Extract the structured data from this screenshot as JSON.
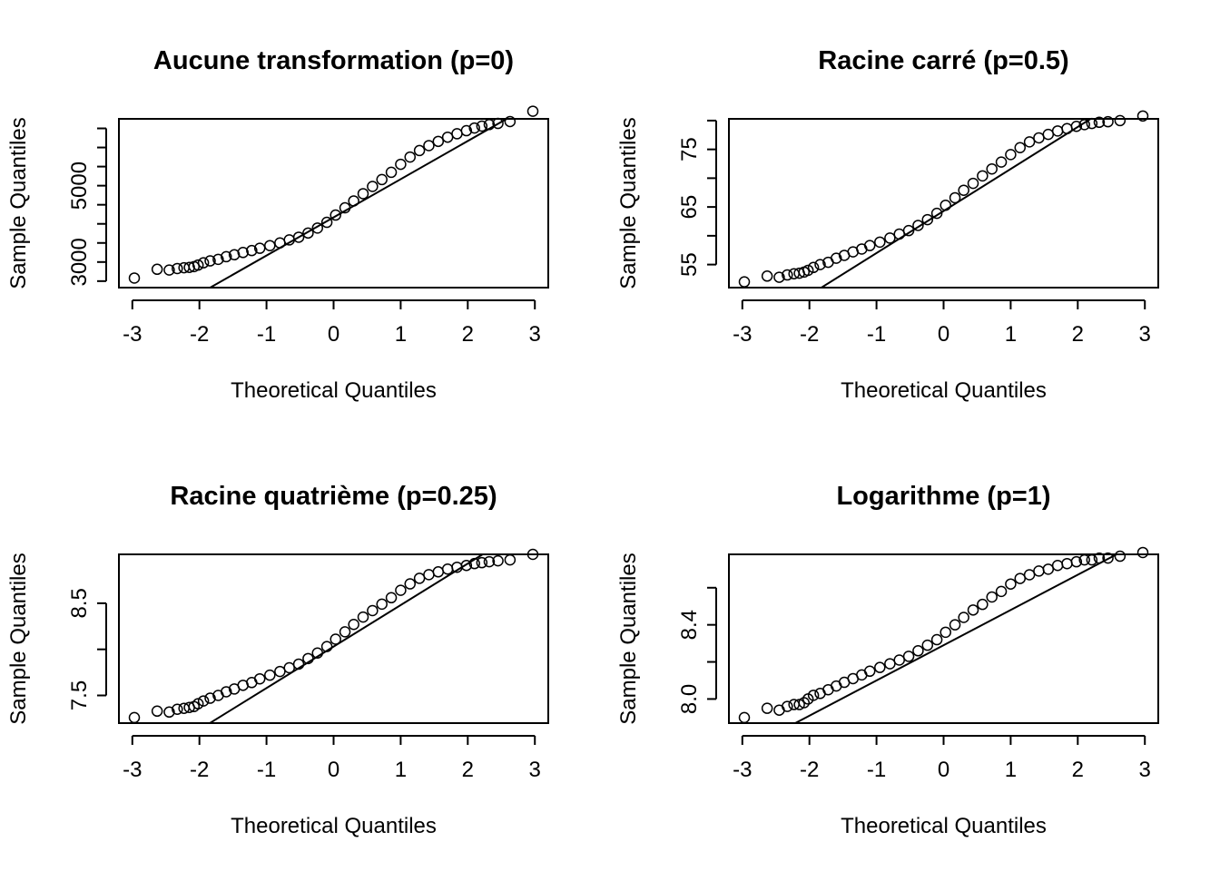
{
  "chart_data": [
    {
      "type": "scatter",
      "title": "Aucune transformation (p=0)",
      "xlabel": "Theoretical Quantiles",
      "ylabel": "Sample Quantiles",
      "xticks": [
        -3,
        -2,
        -1,
        0,
        1,
        2,
        3
      ],
      "xtick_labels": [
        "-3",
        "-2",
        "-1",
        "0",
        "1",
        "2",
        "3"
      ],
      "yticks": [
        2500,
        3000,
        3500,
        4000,
        4500,
        5000,
        5500,
        6000,
        6500
      ],
      "ytick_labels": [
        "",
        "3000",
        "",
        "",
        "",
        "5000",
        "",
        "",
        ""
      ],
      "xlim": [
        -3.2,
        3.2
      ],
      "ylim": [
        2330,
        6750
      ],
      "qqline": {
        "intercept": 4170,
        "slope": 1000
      },
      "x": [
        -2.97,
        -2.63,
        -2.45,
        -2.33,
        -2.23,
        -2.15,
        -2.08,
        -2.02,
        -1.94,
        -1.84,
        -1.72,
        -1.6,
        -1.48,
        -1.35,
        -1.22,
        -1.1,
        -0.95,
        -0.8,
        -0.66,
        -0.52,
        -0.38,
        -0.24,
        -0.1,
        0.03,
        0.17,
        0.3,
        0.44,
        0.58,
        0.72,
        0.86,
        1.0,
        1.14,
        1.28,
        1.42,
        1.56,
        1.7,
        1.84,
        1.98,
        2.1,
        2.21,
        2.32,
        2.45,
        2.63,
        2.97
      ],
      "y": [
        2580,
        2810,
        2790,
        2830,
        2850,
        2860,
        2880,
        2920,
        2980,
        3030,
        3070,
        3140,
        3190,
        3250,
        3300,
        3360,
        3430,
        3500,
        3580,
        3650,
        3760,
        3890,
        4040,
        4230,
        4420,
        4600,
        4790,
        4980,
        5160,
        5350,
        5560,
        5750,
        5920,
        6050,
        6160,
        6270,
        6360,
        6440,
        6510,
        6560,
        6600,
        6630,
        6680,
        6950
      ]
    },
    {
      "type": "scatter",
      "title": "Racine carré (p=0.5)",
      "xlabel": "Theoretical Quantiles",
      "ylabel": "Sample Quantiles",
      "xticks": [
        -3,
        -2,
        -1,
        0,
        1,
        2,
        3
      ],
      "xtick_labels": [
        "-3",
        "-2",
        "-1",
        "0",
        "1",
        "2",
        "3"
      ],
      "yticks": [
        55,
        60,
        65,
        70,
        75,
        80
      ],
      "ytick_labels": [
        "55",
        "",
        "65",
        "",
        "75",
        ""
      ],
      "xlim": [
        -3.2,
        3.2
      ],
      "ylim": [
        51,
        80.3
      ],
      "qqline": {
        "intercept": 64.3,
        "slope": 7.3
      },
      "x": [
        -2.97,
        -2.63,
        -2.45,
        -2.33,
        -2.23,
        -2.15,
        -2.08,
        -2.02,
        -1.94,
        -1.84,
        -1.72,
        -1.6,
        -1.48,
        -1.35,
        -1.22,
        -1.1,
        -0.95,
        -0.8,
        -0.66,
        -0.52,
        -0.38,
        -0.24,
        -0.1,
        0.03,
        0.17,
        0.3,
        0.44,
        0.58,
        0.72,
        0.86,
        1.0,
        1.14,
        1.28,
        1.42,
        1.56,
        1.7,
        1.84,
        1.98,
        2.1,
        2.21,
        2.32,
        2.45,
        2.63,
        2.97
      ],
      "y": [
        52.0,
        53.0,
        52.8,
        53.2,
        53.4,
        53.5,
        53.7,
        54.0,
        54.5,
        55.0,
        55.4,
        56.1,
        56.6,
        57.2,
        57.7,
        58.3,
        58.9,
        59.6,
        60.3,
        60.9,
        61.8,
        62.8,
        63.9,
        65.3,
        66.6,
        67.9,
        69.1,
        70.4,
        71.6,
        72.8,
        74.1,
        75.3,
        76.3,
        77.0,
        77.6,
        78.2,
        78.6,
        79.0,
        79.3,
        79.5,
        79.7,
        79.8,
        80.0,
        80.8
      ]
    },
    {
      "type": "scatter",
      "title": "Racine quatrième (p=0.25)",
      "xlabel": "Theoretical Quantiles",
      "ylabel": "Sample Quantiles",
      "xticks": [
        -3,
        -2,
        -1,
        0,
        1,
        2,
        3
      ],
      "xtick_labels": [
        "-3",
        "-2",
        "-1",
        "0",
        "1",
        "2",
        "3"
      ],
      "yticks": [
        7.5,
        8.0,
        8.5
      ],
      "ytick_labels": [
        "7.5",
        "",
        "8.5"
      ],
      "xlim": [
        -3.2,
        3.2
      ],
      "ylim": [
        7.2,
        9.03
      ],
      "qqline": {
        "intercept": 8.03,
        "slope": 0.45
      },
      "x": [
        -2.97,
        -2.63,
        -2.45,
        -2.33,
        -2.23,
        -2.15,
        -2.08,
        -2.02,
        -1.94,
        -1.84,
        -1.72,
        -1.6,
        -1.48,
        -1.35,
        -1.22,
        -1.1,
        -0.95,
        -0.8,
        -0.66,
        -0.52,
        -0.38,
        -0.24,
        -0.1,
        0.03,
        0.17,
        0.3,
        0.44,
        0.58,
        0.72,
        0.86,
        1.0,
        1.14,
        1.28,
        1.42,
        1.56,
        1.7,
        1.84,
        1.98,
        2.1,
        2.21,
        2.32,
        2.45,
        2.63,
        2.97
      ],
      "y": [
        7.26,
        7.33,
        7.32,
        7.35,
        7.36,
        7.37,
        7.38,
        7.41,
        7.44,
        7.47,
        7.5,
        7.54,
        7.57,
        7.61,
        7.64,
        7.68,
        7.72,
        7.76,
        7.8,
        7.84,
        7.9,
        7.96,
        8.03,
        8.11,
        8.19,
        8.27,
        8.35,
        8.42,
        8.49,
        8.56,
        8.64,
        8.71,
        8.77,
        8.81,
        8.84,
        8.87,
        8.89,
        8.91,
        8.93,
        8.94,
        8.95,
        8.96,
        8.97,
        9.03
      ]
    },
    {
      "type": "scatter",
      "title": "Logarithme (p=1)",
      "xlabel": "Theoretical Quantiles",
      "ylabel": "Sample Quantiles",
      "xticks": [
        -3,
        -2,
        -1,
        0,
        1,
        2,
        3
      ],
      "xtick_labels": [
        "-3",
        "-2",
        "-1",
        "0",
        "1",
        "2",
        "3"
      ],
      "yticks": [
        8.0,
        8.2,
        8.4,
        8.6
      ],
      "ytick_labels": [
        "8.0",
        "",
        "8.4",
        ""
      ],
      "xlim": [
        -3.2,
        3.2
      ],
      "ylim": [
        7.87,
        8.78
      ],
      "qqline": {
        "intercept": 8.29,
        "slope": 0.19
      },
      "x": [
        -2.97,
        -2.63,
        -2.45,
        -2.33,
        -2.23,
        -2.15,
        -2.08,
        -2.02,
        -1.94,
        -1.84,
        -1.72,
        -1.6,
        -1.48,
        -1.35,
        -1.22,
        -1.1,
        -0.95,
        -0.8,
        -0.66,
        -0.52,
        -0.38,
        -0.24,
        -0.1,
        0.03,
        0.17,
        0.3,
        0.44,
        0.58,
        0.72,
        0.86,
        1.0,
        1.14,
        1.28,
        1.42,
        1.56,
        1.7,
        1.84,
        1.98,
        2.1,
        2.21,
        2.32,
        2.45,
        2.63,
        2.97
      ],
      "y": [
        7.9,
        7.95,
        7.94,
        7.96,
        7.97,
        7.97,
        7.98,
        8.0,
        8.02,
        8.03,
        8.05,
        8.07,
        8.09,
        8.11,
        8.13,
        8.15,
        8.17,
        8.19,
        8.21,
        8.23,
        8.26,
        8.29,
        8.32,
        8.36,
        8.4,
        8.44,
        8.48,
        8.51,
        8.55,
        8.58,
        8.62,
        8.65,
        8.67,
        8.69,
        8.7,
        8.72,
        8.73,
        8.74,
        8.75,
        8.75,
        8.76,
        8.76,
        8.77,
        8.79
      ]
    }
  ]
}
